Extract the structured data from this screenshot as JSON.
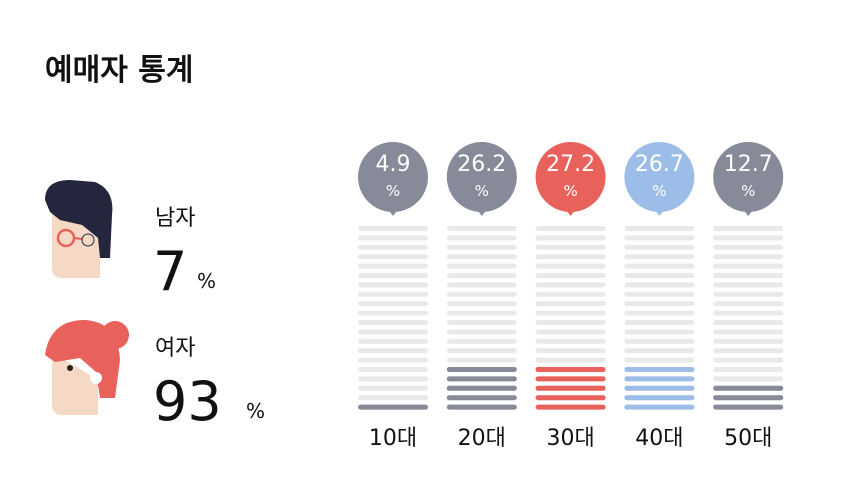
{
  "title": "예매자 통계",
  "gender": {
    "unit": "%",
    "items": [
      {
        "label": "남자",
        "value": 7
      },
      {
        "label": "여자",
        "value": 93
      }
    ]
  },
  "chart_data": {
    "type": "stripe-bar",
    "categories": [
      "10대",
      "20대",
      "30대",
      "40대",
      "50대"
    ],
    "values": [
      4.9,
      26.2,
      27.2,
      26.7,
      12.7
    ],
    "unit": "%",
    "colors": [
      "#878a99",
      "#878a99",
      "#e8615a",
      "#9dbde9",
      "#878a99"
    ],
    "ylim": [
      0,
      100
    ]
  }
}
